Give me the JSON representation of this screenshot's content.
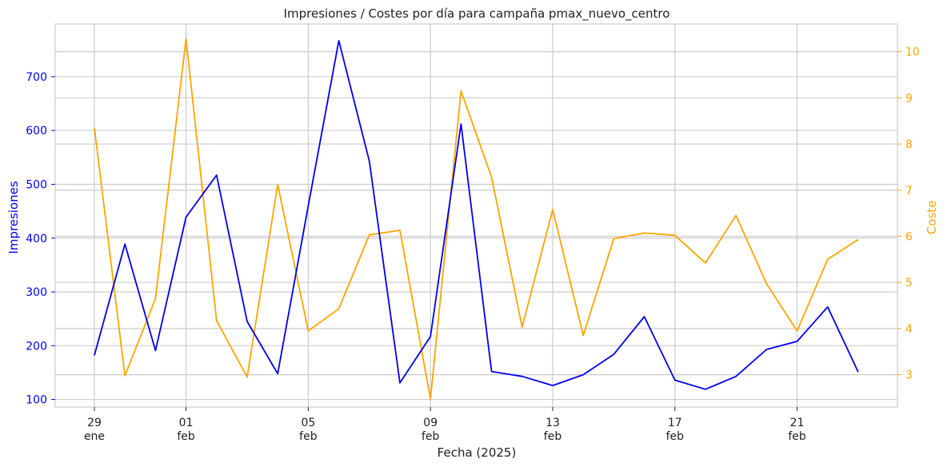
{
  "chart_data": {
    "type": "line",
    "title": "Impresiones / Costes por día para campaña pmax_nuevo_centro",
    "xlabel": "Fecha (2025)",
    "ylabel_left": "Impresiones",
    "ylabel_right": "Coste",
    "x": [
      "2025-01-29",
      "2025-01-30",
      "2025-01-31",
      "2025-02-01",
      "2025-02-02",
      "2025-02-03",
      "2025-02-04",
      "2025-02-05",
      "2025-02-06",
      "2025-02-07",
      "2025-02-08",
      "2025-02-09",
      "2025-02-10",
      "2025-02-11",
      "2025-02-12",
      "2025-02-13",
      "2025-02-14",
      "2025-02-15",
      "2025-02-16",
      "2025-02-17",
      "2025-02-18",
      "2025-02-19",
      "2025-02-20",
      "2025-02-21",
      "2025-02-22",
      "2025-02-23"
    ],
    "x_ticks": [
      {
        "date": "2025-01-29",
        "day": "29",
        "month": "ene"
      },
      {
        "date": "2025-02-01",
        "day": "01",
        "month": "feb"
      },
      {
        "date": "2025-02-05",
        "day": "05",
        "month": "feb"
      },
      {
        "date": "2025-02-09",
        "day": "09",
        "month": "feb"
      },
      {
        "date": "2025-02-13",
        "day": "13",
        "month": "feb"
      },
      {
        "date": "2025-02-17",
        "day": "17",
        "month": "feb"
      },
      {
        "date": "2025-02-21",
        "day": "21",
        "month": "feb"
      }
    ],
    "y_left": {
      "ticks": [
        100,
        200,
        300,
        400,
        500,
        600,
        700
      ],
      "lim": [
        86,
        798
      ]
    },
    "y_right": {
      "ticks": [
        3,
        4,
        5,
        6,
        7,
        8,
        9,
        10
      ],
      "lim": [
        2.3,
        10.6
      ]
    },
    "grid": true,
    "series": [
      {
        "name": "Impresiones",
        "axis": "left",
        "color": "#0000ee",
        "values": [
          182,
          389,
          191,
          439,
          517,
          245,
          148,
          460,
          767,
          543,
          131,
          217,
          612,
          152,
          143,
          126,
          146,
          184,
          254,
          136,
          119,
          143,
          193,
          208,
          272,
          151
        ]
      },
      {
        "name": "Coste",
        "axis": "right",
        "color": "#ffa500",
        "values": [
          8.35,
          2.98,
          4.65,
          10.28,
          4.17,
          2.95,
          7.12,
          3.95,
          4.43,
          6.03,
          6.13,
          2.47,
          9.15,
          7.28,
          4.03,
          6.58,
          3.85,
          5.95,
          6.07,
          6.02,
          5.42,
          6.45,
          4.97,
          3.95,
          5.5,
          5.93
        ]
      }
    ],
    "colors": {
      "left_axis": "#0000ee",
      "right_axis": "#ffa500",
      "grid": "#cccccc",
      "text": "#222222"
    }
  }
}
